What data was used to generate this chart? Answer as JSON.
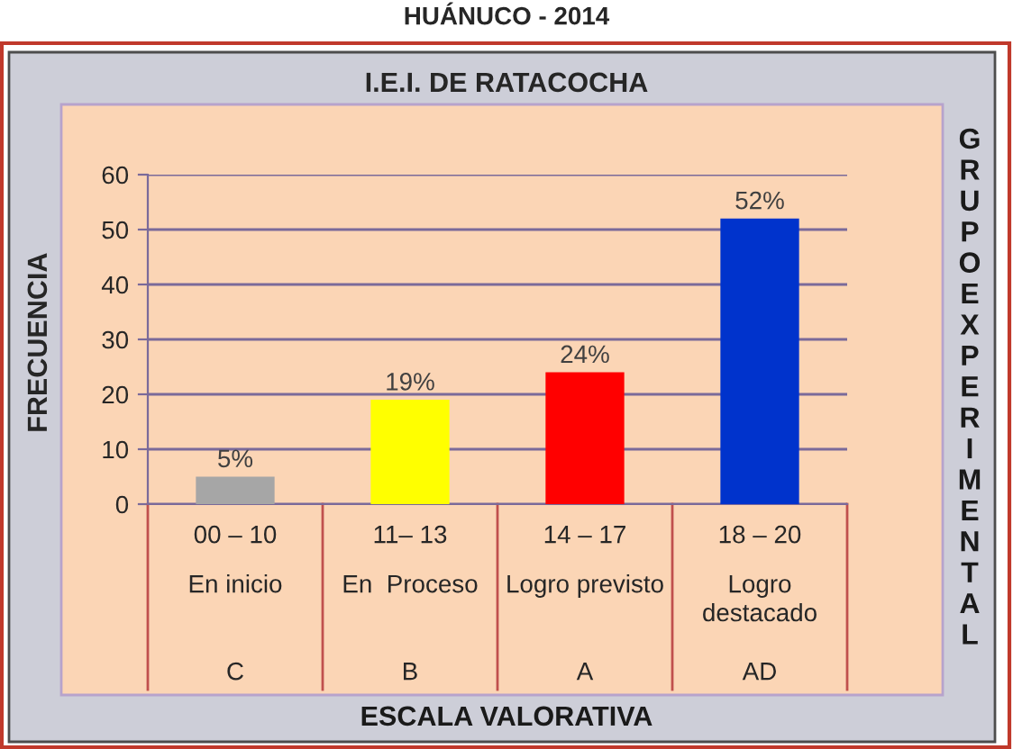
{
  "chart_data": {
    "type": "bar",
    "title": "HUÁNUCO - 2014",
    "subtitle": "I.E.I. DE RATACOCHA",
    "ylabel": "FRECUENCIA",
    "annotations": [
      "GRUPOEXPERIMENTAL",
      "ESCALA VALORATIVA"
    ],
    "categories": [
      "00 – 10\nEn inicio\nC",
      "11– 13\nEn  Proceso\nB",
      "14 – 17\nLogro previsto\nA",
      "18 – 20\nLogro\ndestacado\nAD"
    ],
    "values": [
      5,
      19,
      24,
      52
    ],
    "colors": [
      "#a6a6a6",
      "#ffff00",
      "#ff0000",
      "#0033cc"
    ],
    "value_labels": [
      "5%",
      "19%",
      "24%",
      "52%"
    ],
    "ylim": [
      0,
      60
    ],
    "yticks": [
      0,
      10,
      20,
      30,
      40,
      50,
      60
    ],
    "grid": "y"
  }
}
